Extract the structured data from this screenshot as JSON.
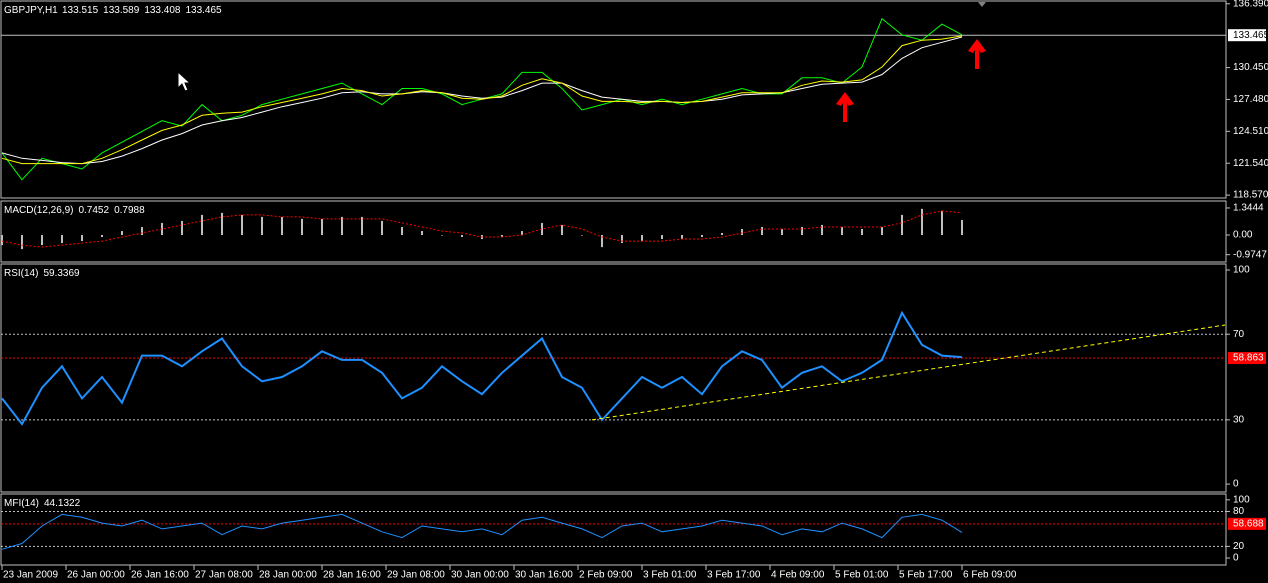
{
  "chart_data": [
    {
      "type": "line",
      "title": "GBPJPY,H1",
      "readings": [
        133.515,
        133.589,
        133.408,
        133.465
      ],
      "current_index": 3,
      "x": [
        0,
        5,
        10,
        15,
        20,
        25,
        30,
        35,
        40,
        45,
        50,
        55,
        60,
        65,
        70,
        75,
        80,
        85,
        90,
        95,
        100,
        105,
        110,
        115,
        120,
        125,
        130,
        135,
        140,
        145,
        150,
        155,
        160,
        165,
        170,
        175,
        180,
        185,
        190,
        195,
        200,
        205,
        210,
        215,
        220,
        225,
        230,
        235,
        240
      ],
      "xlim": [
        0,
        306
      ],
      "ylim": [
        118.3,
        136.65
      ],
      "yticks": [
        {
          "value": 118.57,
          "label": "118.570"
        },
        {
          "value": 121.54,
          "label": "121.540"
        },
        {
          "value": 124.51,
          "label": "124.510"
        },
        {
          "value": 127.48,
          "label": "127.480"
        },
        {
          "value": 130.45,
          "label": "130.450"
        },
        {
          "value": 136.39,
          "label": "136.390"
        }
      ],
      "series": [
        {
          "color": "#00ff00",
          "values": [
            122.5,
            120.0,
            122.0,
            121.5,
            121.0,
            122.5,
            123.5,
            124.5,
            125.5,
            125.0,
            127.0,
            125.5,
            126.0,
            127.0,
            127.5,
            128.0,
            128.5,
            129.0,
            128.0,
            127.0,
            128.5,
            128.5,
            128.0,
            127.0,
            127.5,
            128.0,
            130.0,
            130.0,
            128.5,
            126.5,
            127.0,
            127.5,
            127.0,
            127.5,
            127.0,
            127.5,
            128.0,
            128.5,
            128.0,
            128.0,
            129.5,
            129.5,
            129.0,
            130.5,
            135.0,
            133.5,
            133.0,
            134.5,
            133.5
          ]
        },
        {
          "color": "#ffffff",
          "values": [
            122.5,
            122,
            121.8,
            121.6,
            121.5,
            121.7,
            122.2,
            122.9,
            123.7,
            124.3,
            125.1,
            125.5,
            125.8,
            126.3,
            126.8,
            127.2,
            127.6,
            128.1,
            128.2,
            128,
            128,
            128.2,
            128.1,
            127.8,
            127.6,
            127.7,
            128.3,
            129,
            129,
            128.3,
            127.7,
            127.5,
            127.3,
            127.3,
            127.2,
            127.3,
            127.5,
            127.9,
            128,
            128.1,
            128.5,
            128.9,
            129,
            129.1,
            129.8,
            131.3,
            132.3,
            132.8,
            133.3
          ]
        },
        {
          "color": "#ffff00",
          "values": [
            122,
            121.5,
            121.5,
            121.5,
            121.5,
            122,
            122.8,
            123.7,
            124.6,
            125.1,
            126,
            126.2,
            126.3,
            126.8,
            127.2,
            127.6,
            128,
            128.5,
            128.3,
            127.8,
            128,
            128.3,
            128.1,
            127.6,
            127.5,
            127.8,
            128.8,
            129.4,
            129,
            127.8,
            127.3,
            127.3,
            127.2,
            127.3,
            127.2,
            127.3,
            127.7,
            128.1,
            128.1,
            128.1,
            128.8,
            129.2,
            129.1,
            129.3,
            130.5,
            132.5,
            133,
            133.1,
            133.4
          ]
        }
      ]
    },
    {
      "type": "bar",
      "title": "MACD(12,26,9)",
      "readings": [
        0.7452,
        0.7988
      ],
      "ylim": [
        -1.34,
        1.69
      ],
      "yticks": [
        -0.9747,
        {
          "value": 0,
          "label": "0.00"
        },
        1.3444
      ],
      "series": [
        {
          "color": "#c0c0c0",
          "style": "bars",
          "values": [
            -0.5,
            -0.7,
            -0.5,
            -0.4,
            -0.3,
            -0.1,
            0.2,
            0.4,
            0.6,
            0.7,
            1.0,
            1.1,
            1.0,
            0.9,
            0.9,
            0.8,
            0.8,
            0.9,
            0.9,
            0.7,
            0.4,
            0.2,
            0.0,
            -0.1,
            -0.2,
            -0.1,
            0.2,
            0.6,
            0.5,
            0.0,
            -0.6,
            -0.4,
            -0.3,
            -0.2,
            -0.2,
            -0.1,
            0.1,
            0.3,
            0.4,
            0.3,
            0.4,
            0.5,
            0.4,
            0.3,
            0.4,
            1.0,
            1.3,
            1.2,
            0.75
          ]
        },
        {
          "color": "#ff0000",
          "dash": true,
          "values": [
            -0.3,
            -0.5,
            -0.6,
            -0.5,
            -0.4,
            -0.3,
            -0.1,
            0.1,
            0.3,
            0.5,
            0.7,
            0.9,
            1.0,
            1.0,
            0.9,
            0.9,
            0.8,
            0.8,
            0.8,
            0.8,
            0.6,
            0.4,
            0.2,
            0.1,
            -0.1,
            -0.1,
            0.0,
            0.3,
            0.5,
            0.3,
            -0.1,
            -0.3,
            -0.3,
            -0.3,
            -0.2,
            -0.2,
            -0.1,
            0.1,
            0.3,
            0.3,
            0.3,
            0.4,
            0.4,
            0.4,
            0.4,
            0.6,
            1.0,
            1.2,
            1.1
          ]
        }
      ]
    },
    {
      "type": "line",
      "title": "RSI(14)",
      "readings": [
        59.3369
      ],
      "ylim": [
        -3.7,
        102.8
      ],
      "yticks": [
        0,
        30,
        70,
        100
      ],
      "level": 58.863,
      "level_color": "#ff0000",
      "trendline": {
        "x": [
          147.5,
          305.75
        ],
        "y": [
          30,
          74.3
        ],
        "color": "#ffff00"
      },
      "series": [
        {
          "color": "#1e90ff",
          "width": 2,
          "values": [
            40,
            28,
            45,
            55,
            40,
            50,
            38,
            60,
            60,
            55,
            62,
            68,
            55,
            48,
            50,
            55,
            62,
            58,
            58,
            52,
            40,
            45,
            55,
            48,
            42,
            52,
            60,
            68,
            50,
            45,
            30,
            40,
            50,
            45,
            50,
            42,
            55,
            62,
            58,
            45,
            52,
            55,
            48,
            52,
            58,
            80,
            65,
            60,
            59.3
          ]
        }
      ]
    },
    {
      "type": "line",
      "title": "MFI(14)",
      "readings": [
        44.1322
      ],
      "ylim": [
        -12,
        110
      ],
      "yticks": [
        0,
        20,
        80,
        100
      ],
      "level": 58.688,
      "level_color": "#ff0000",
      "xticks": [
        {
          "value": 0,
          "label": "23 Jan 2009"
        },
        {
          "value": 16,
          "label": "26 Jan 00:00"
        },
        {
          "value": 32,
          "label": "26 Jan 16:00"
        },
        {
          "value": 48,
          "label": "27 Jan 08:00"
        },
        {
          "value": 64,
          "label": "28 Jan 00:00"
        },
        {
          "value": 80,
          "label": "28 Jan 16:00"
        },
        {
          "value": 96,
          "label": "29 Jan 08:00"
        },
        {
          "value": 112,
          "label": "30 Jan 00:00"
        },
        {
          "value": 128,
          "label": "30 Jan 16:00"
        },
        {
          "value": 144,
          "label": "2 Feb 09:00"
        },
        {
          "value": 160,
          "label": "3 Feb 01:00"
        },
        {
          "value": 176,
          "label": "3 Feb 17:00"
        },
        {
          "value": 192,
          "label": "4 Feb 09:00"
        },
        {
          "value": 208,
          "label": "5 Feb 01:00"
        },
        {
          "value": 224,
          "label": "5 Feb 17:00"
        },
        {
          "value": 240,
          "label": "6 Feb 09:00"
        }
      ],
      "series": [
        {
          "color": "#1e90ff",
          "width": 1,
          "values": [
            15,
            25,
            55,
            75,
            70,
            60,
            55,
            65,
            50,
            55,
            60,
            40,
            55,
            50,
            60,
            65,
            70,
            75,
            60,
            45,
            35,
            55,
            50,
            45,
            50,
            40,
            65,
            70,
            60,
            50,
            35,
            55,
            60,
            45,
            50,
            55,
            65,
            60,
            55,
            40,
            50,
            45,
            60,
            50,
            35,
            70,
            75,
            65,
            44
          ]
        }
      ]
    }
  ]
}
